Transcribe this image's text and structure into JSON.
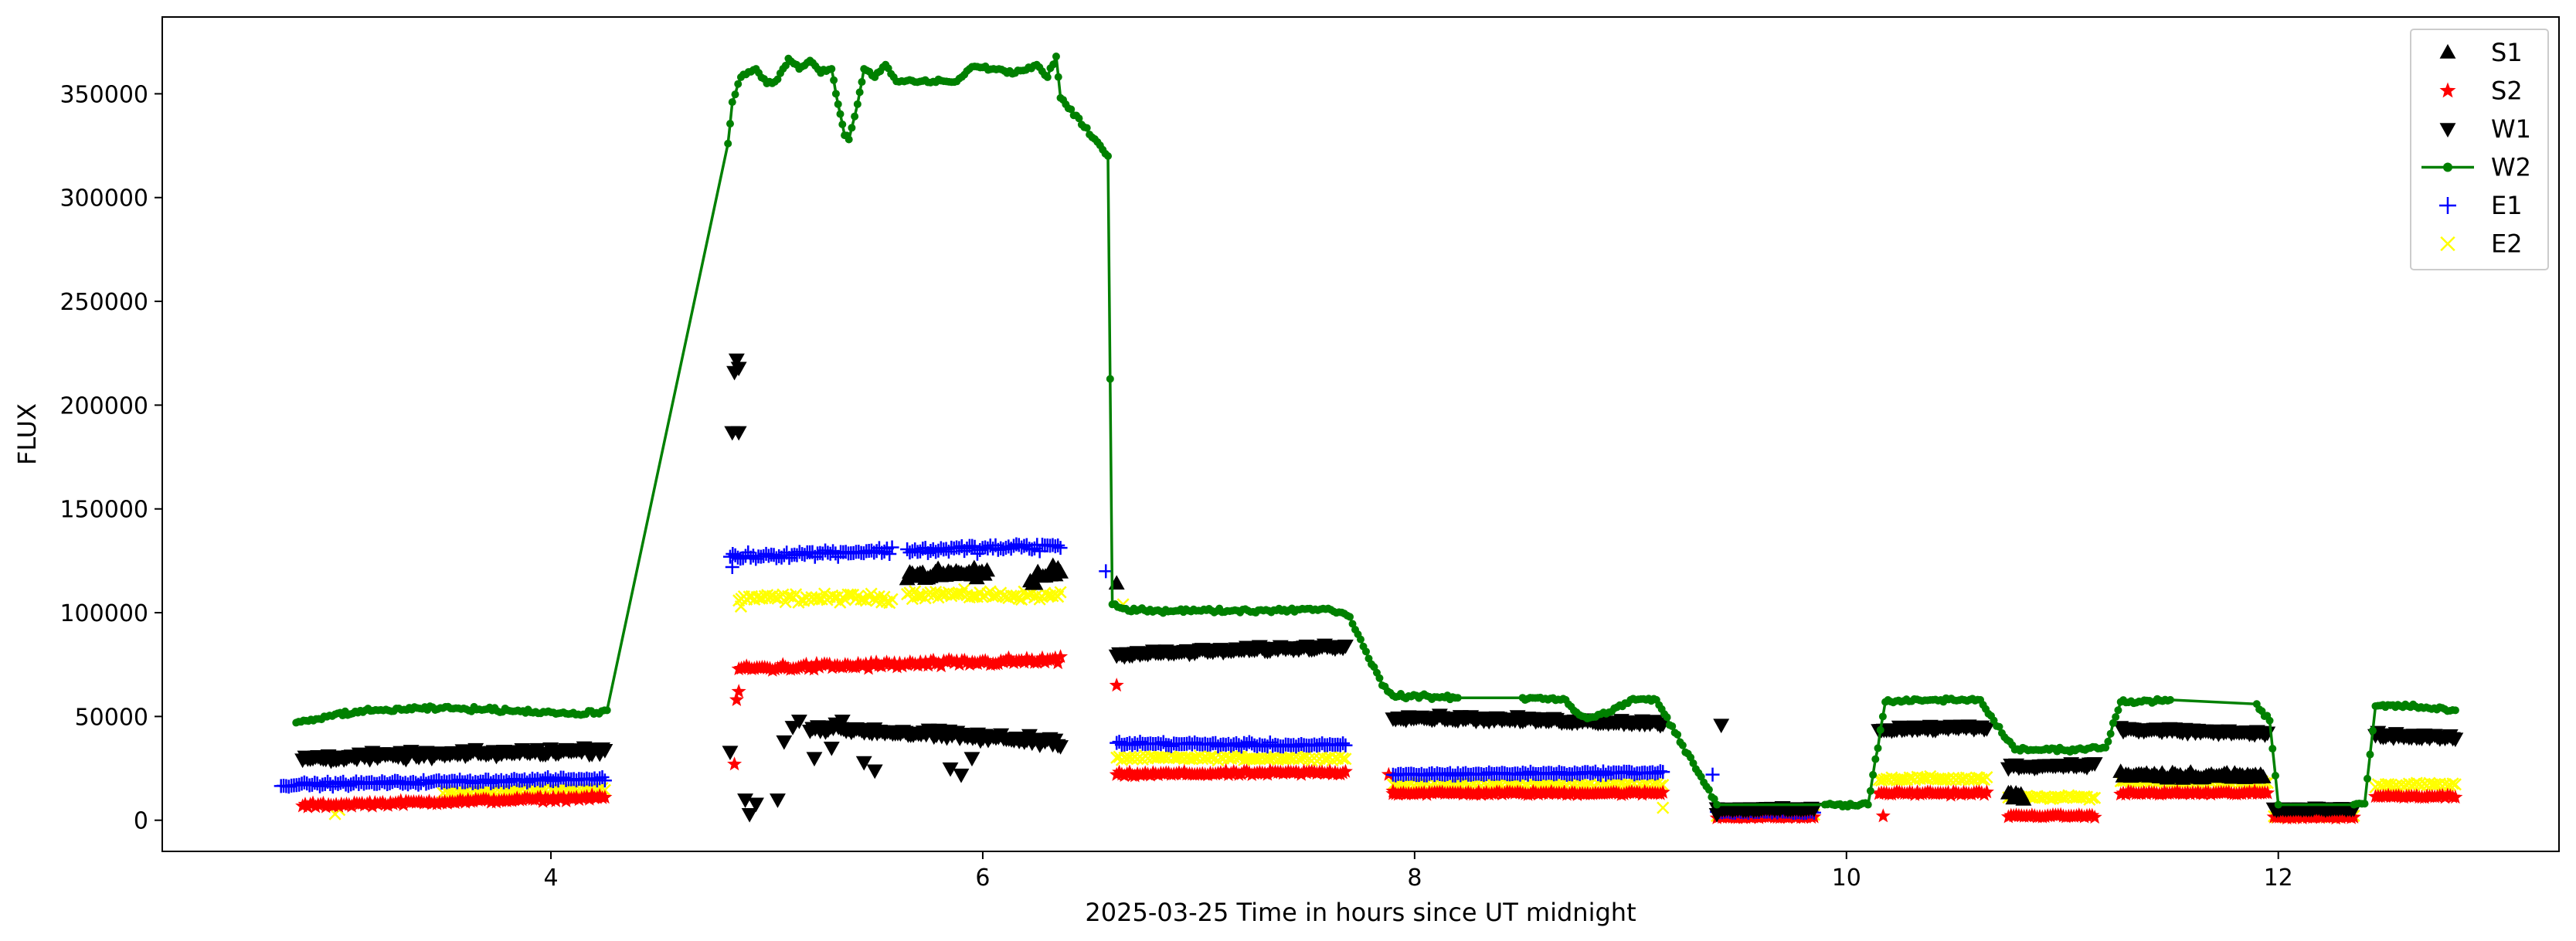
{
  "chart_data": {
    "type": "scatter",
    "xlabel": "2025-03-25  Time in hours since UT midnight",
    "ylabel": "FLUX",
    "xlim": [
      2.2,
      13.3
    ],
    "ylim": [
      -15000,
      387000
    ],
    "xticks": [
      4,
      6,
      8,
      10,
      12
    ],
    "yticks": [
      0,
      50000,
      100000,
      150000,
      200000,
      250000,
      300000,
      350000
    ],
    "grid": false,
    "legend_position": "top-right",
    "series": [
      {
        "name": "S1",
        "marker": "triangle-up",
        "color": "#000000",
        "segments": [
          {
            "x0": 5.65,
            "x1": 6.02,
            "y0": 118000,
            "y1": 119000,
            "noise": 3500
          },
          {
            "x0": 6.22,
            "x1": 6.36,
            "y0": 115000,
            "y1": 121000,
            "noise": 5000
          },
          {
            "x0": 10.75,
            "x1": 10.82,
            "y0": 12000,
            "y1": 12000,
            "noise": 3000
          },
          {
            "x0": 11.27,
            "x1": 11.93,
            "y0": 22000,
            "y1": 21000,
            "noise": 2500
          }
        ],
        "points": [
          [
            6.62,
            114000
          ]
        ]
      },
      {
        "name": "S2",
        "marker": "star",
        "color": "#ff0000",
        "segments": [
          {
            "x0": 2.85,
            "x1": 4.25,
            "y0": 7000,
            "y1": 11000,
            "noise": 1500
          },
          {
            "x0": 4.87,
            "x1": 6.36,
            "y0": 73000,
            "y1": 77000,
            "noise": 2500
          },
          {
            "x0": 6.62,
            "x1": 7.68,
            "y0": 22000,
            "y1": 23000,
            "noise": 1500
          },
          {
            "x0": 7.9,
            "x1": 9.15,
            "y0": 13000,
            "y1": 13000,
            "noise": 1200
          },
          {
            "x0": 9.4,
            "x1": 9.85,
            "y0": 1500,
            "y1": 1500,
            "noise": 800
          },
          {
            "x0": 10.15,
            "x1": 10.65,
            "y0": 13000,
            "y1": 13000,
            "noise": 1200
          },
          {
            "x0": 10.75,
            "x1": 11.15,
            "y0": 2000,
            "y1": 2000,
            "noise": 800
          },
          {
            "x0": 11.27,
            "x1": 11.95,
            "y0": 13000,
            "y1": 13000,
            "noise": 1200
          },
          {
            "x0": 11.98,
            "x1": 12.35,
            "y0": 1500,
            "y1": 1500,
            "noise": 800
          },
          {
            "x0": 12.45,
            "x1": 12.82,
            "y0": 11500,
            "y1": 11500,
            "noise": 1000
          }
        ],
        "points": [
          [
            4.85,
            27000
          ],
          [
            4.86,
            58000
          ],
          [
            4.87,
            62000
          ],
          [
            6.62,
            65000
          ],
          [
            7.88,
            22000
          ],
          [
            7.9,
            14000
          ],
          [
            10.17,
            2000
          ]
        ]
      },
      {
        "name": "W1",
        "marker": "triangle-down",
        "color": "#000000",
        "segments": [
          {
            "x0": 2.85,
            "x1": 4.25,
            "y0": 30000,
            "y1": 34000,
            "noise": 2500
          },
          {
            "x0": 5.2,
            "x1": 6.36,
            "y0": 45000,
            "y1": 38000,
            "noise": 3000
          },
          {
            "x0": 6.62,
            "x1": 7.68,
            "y0": 80000,
            "y1": 84000,
            "noise": 1800
          },
          {
            "x0": 7.9,
            "x1": 9.15,
            "y0": 50000,
            "y1": 47000,
            "noise": 1800
          },
          {
            "x0": 9.4,
            "x1": 9.85,
            "y0": 5500,
            "y1": 5500,
            "noise": 1000
          },
          {
            "x0": 10.15,
            "x1": 10.65,
            "y0": 44000,
            "y1": 45000,
            "noise": 2000
          },
          {
            "x0": 10.75,
            "x1": 11.15,
            "y0": 26000,
            "y1": 27000,
            "noise": 1500
          },
          {
            "x0": 11.27,
            "x1": 11.95,
            "y0": 44000,
            "y1": 42000,
            "noise": 2000
          },
          {
            "x0": 11.98,
            "x1": 12.35,
            "y0": 5500,
            "y1": 5500,
            "noise": 900
          },
          {
            "x0": 12.45,
            "x1": 12.82,
            "y0": 41000,
            "y1": 40000,
            "noise": 2000
          }
        ],
        "points": [
          [
            4.83,
            33000
          ],
          [
            4.85,
            216000
          ],
          [
            4.86,
            222000
          ],
          [
            4.87,
            218000
          ],
          [
            4.84,
            187000
          ],
          [
            4.87,
            187000
          ],
          [
            4.9,
            10000
          ],
          [
            4.92,
            3000
          ],
          [
            4.95,
            8000
          ],
          [
            5.05,
            10000
          ],
          [
            5.08,
            38000
          ],
          [
            5.12,
            45000
          ],
          [
            5.15,
            48000
          ],
          [
            5.22,
            30000
          ],
          [
            5.3,
            35000
          ],
          [
            5.35,
            48000
          ],
          [
            5.45,
            28000
          ],
          [
            5.5,
            24000
          ],
          [
            5.85,
            25000
          ],
          [
            5.9,
            22000
          ],
          [
            5.95,
            30000
          ],
          [
            9.42,
            46000
          ],
          [
            9.4,
            3000
          ]
        ]
      },
      {
        "name": "W2",
        "marker": "dot-line",
        "color": "#008000",
        "points": [
          [
            2.82,
            47000
          ],
          [
            2.9,
            48000
          ],
          [
            3.0,
            51000
          ],
          [
            3.2,
            53000
          ],
          [
            3.5,
            54000
          ],
          [
            3.8,
            53000
          ],
          [
            4.0,
            52000
          ],
          [
            4.15,
            51000
          ],
          [
            4.26,
            53000
          ],
          [
            4.82,
            326000
          ],
          [
            4.84,
            346000
          ],
          [
            4.88,
            358000
          ],
          [
            4.95,
            362000
          ],
          [
            5.0,
            355000
          ],
          [
            5.05,
            357000
          ],
          [
            5.1,
            367000
          ],
          [
            5.15,
            362000
          ],
          [
            5.2,
            366000
          ],
          [
            5.25,
            360000
          ],
          [
            5.3,
            362000
          ],
          [
            5.33,
            345000
          ],
          [
            5.36,
            330000
          ],
          [
            5.38,
            328000
          ],
          [
            5.42,
            345000
          ],
          [
            5.45,
            362000
          ],
          [
            5.5,
            358000
          ],
          [
            5.55,
            364000
          ],
          [
            5.6,
            356000
          ],
          [
            5.88,
            356000
          ],
          [
            5.95,
            363000
          ],
          [
            6.05,
            362000
          ],
          [
            6.15,
            360000
          ],
          [
            6.25,
            364000
          ],
          [
            6.3,
            358000
          ],
          [
            6.34,
            368000
          ],
          [
            6.36,
            348000
          ],
          [
            6.58,
            320000
          ],
          [
            6.6,
            104000
          ],
          [
            6.65,
            102000
          ],
          [
            6.8,
            101000
          ],
          [
            7.0,
            101000
          ],
          [
            7.3,
            101000
          ],
          [
            7.6,
            102000
          ],
          [
            7.7,
            98000
          ],
          [
            7.85,
            65000
          ],
          [
            7.9,
            60000
          ],
          [
            8.2,
            59000
          ],
          [
            8.5,
            59000
          ],
          [
            8.7,
            58000
          ],
          [
            8.75,
            52000
          ],
          [
            8.8,
            49000
          ],
          [
            8.9,
            52000
          ],
          [
            9.0,
            58000
          ],
          [
            9.12,
            58000
          ],
          [
            9.4,
            7500
          ],
          [
            9.9,
            7500
          ],
          [
            10.1,
            7500
          ],
          [
            10.18,
            57000
          ],
          [
            10.4,
            58000
          ],
          [
            10.62,
            58000
          ],
          [
            10.72,
            42000
          ],
          [
            10.78,
            34000
          ],
          [
            11.0,
            34000
          ],
          [
            11.2,
            35000
          ],
          [
            11.27,
            57000
          ],
          [
            11.5,
            58000
          ],
          [
            11.9,
            56000
          ],
          [
            11.96,
            48000
          ],
          [
            12.0,
            7500
          ],
          [
            12.35,
            7500
          ],
          [
            12.4,
            8000
          ],
          [
            12.45,
            55000
          ],
          [
            12.6,
            55000
          ],
          [
            12.82,
            53000
          ]
        ],
        "noise": 1500
      },
      {
        "name": "E1",
        "marker": "plus",
        "color": "#0000ff",
        "segments": [
          {
            "x0": 2.75,
            "x1": 4.25,
            "y0": 17000,
            "y1": 20000,
            "noise": 1500
          },
          {
            "x0": 4.83,
            "x1": 5.58,
            "y0": 127000,
            "y1": 130000,
            "noise": 2500
          },
          {
            "x0": 5.65,
            "x1": 6.36,
            "y0": 130000,
            "y1": 132000,
            "noise": 3000
          },
          {
            "x0": 6.62,
            "x1": 7.68,
            "y0": 37000,
            "y1": 36000,
            "noise": 1500
          },
          {
            "x0": 7.9,
            "x1": 9.15,
            "y0": 22000,
            "y1": 23000,
            "noise": 1200
          },
          {
            "x0": 9.4,
            "x1": 9.85,
            "y0": 4000,
            "y1": 4000,
            "noise": 800
          }
        ],
        "points": [
          [
            6.57,
            120000
          ],
          [
            9.38,
            22000
          ],
          [
            4.84,
            122000
          ]
        ]
      },
      {
        "name": "E2",
        "marker": "x",
        "color": "#ffff00",
        "segments": [
          {
            "x0": 3.5,
            "x1": 4.25,
            "y0": 13000,
            "y1": 15000,
            "noise": 1800
          },
          {
            "x0": 4.87,
            "x1": 5.58,
            "y0": 107000,
            "y1": 107000,
            "noise": 3000
          },
          {
            "x0": 5.65,
            "x1": 6.36,
            "y0": 109000,
            "y1": 108000,
            "noise": 3000
          },
          {
            "x0": 6.62,
            "x1": 7.68,
            "y0": 30000,
            "y1": 30000,
            "noise": 1500
          },
          {
            "x0": 7.9,
            "x1": 9.15,
            "y0": 17000,
            "y1": 17000,
            "noise": 1500
          },
          {
            "x0": 9.4,
            "x1": 9.85,
            "y0": 2500,
            "y1": 2500,
            "noise": 800
          },
          {
            "x0": 10.15,
            "x1": 10.65,
            "y0": 20000,
            "y1": 20000,
            "noise": 1500
          },
          {
            "x0": 10.75,
            "x1": 11.15,
            "y0": 11000,
            "y1": 11000,
            "noise": 1200
          },
          {
            "x0": 11.27,
            "x1": 11.95,
            "y0": 19000,
            "y1": 18000,
            "noise": 1500
          },
          {
            "x0": 11.98,
            "x1": 12.35,
            "y0": 2000,
            "y1": 2000,
            "noise": 700
          },
          {
            "x0": 12.45,
            "x1": 12.82,
            "y0": 17000,
            "y1": 17000,
            "noise": 1500
          }
        ],
        "points": [
          [
            3.0,
            3000
          ],
          [
            3.02,
            5000
          ],
          [
            4.88,
            103000
          ],
          [
            6.65,
            104000
          ],
          [
            9.15,
            6000
          ]
        ]
      }
    ]
  }
}
